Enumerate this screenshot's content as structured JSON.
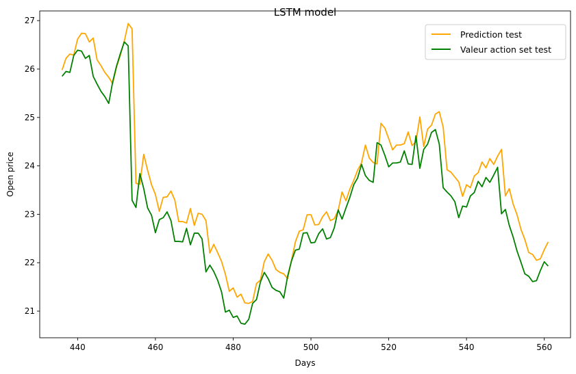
{
  "chart_data": {
    "type": "line",
    "title": "LSTM model",
    "xlabel": "Days",
    "ylabel": "Open price",
    "xlim": [
      430.25,
      566.75
    ],
    "ylim": [
      20.45,
      27.2
    ],
    "xticks": [
      440,
      460,
      480,
      500,
      520,
      540,
      560
    ],
    "yticks": [
      21,
      22,
      23,
      24,
      25,
      26,
      27
    ],
    "grid": false,
    "legend_position": "top-right",
    "x_start": 436,
    "series": [
      {
        "name": "Prediction test",
        "color": "#FFA500",
        "values": [
          25.98,
          26.22,
          26.31,
          26.29,
          26.62,
          26.74,
          26.73,
          26.56,
          26.64,
          26.19,
          26.07,
          25.93,
          25.83,
          25.7,
          26.04,
          26.29,
          26.58,
          26.94,
          26.83,
          23.64,
          23.62,
          24.24,
          23.91,
          23.61,
          23.41,
          23.06,
          23.35,
          23.36,
          23.48,
          23.29,
          22.85,
          22.85,
          22.82,
          23.12,
          22.77,
          23.02,
          23.0,
          22.87,
          22.2,
          22.38,
          22.21,
          22.03,
          21.76,
          21.41,
          21.48,
          21.29,
          21.35,
          21.17,
          21.16,
          21.2,
          21.57,
          21.64,
          22.02,
          22.18,
          22.05,
          21.86,
          21.8,
          21.77,
          21.67,
          22.05,
          22.43,
          22.65,
          22.68,
          22.99,
          22.99,
          22.78,
          22.79,
          22.95,
          23.05,
          22.87,
          22.91,
          23.08,
          23.46,
          23.28,
          23.52,
          23.7,
          23.91,
          24.06,
          24.43,
          24.16,
          24.07,
          24.04,
          24.88,
          24.78,
          24.56,
          24.33,
          24.43,
          24.43,
          24.46,
          24.7,
          24.42,
          24.5,
          25.01,
          24.4,
          24.76,
          24.84,
          25.07,
          25.12,
          24.8,
          23.92,
          23.87,
          23.77,
          23.67,
          23.37,
          23.61,
          23.55,
          23.79,
          23.86,
          24.08,
          23.96,
          24.15,
          24.03,
          24.2,
          24.34,
          23.38,
          23.53,
          23.21,
          22.99,
          22.69,
          22.48,
          22.21,
          22.17,
          22.05,
          22.08,
          22.27,
          22.43
        ]
      },
      {
        "name": "Valeur action set test",
        "color": "#008000",
        "values": [
          25.85,
          25.95,
          25.93,
          26.28,
          26.39,
          26.37,
          26.22,
          26.28,
          25.85,
          25.69,
          25.54,
          25.43,
          25.29,
          25.73,
          26.06,
          26.32,
          26.56,
          26.48,
          23.29,
          23.14,
          23.84,
          23.53,
          23.13,
          22.98,
          22.62,
          22.89,
          22.93,
          23.05,
          22.87,
          22.44,
          22.44,
          22.43,
          22.71,
          22.37,
          22.61,
          22.61,
          22.49,
          21.81,
          21.95,
          21.82,
          21.64,
          21.4,
          20.98,
          21.02,
          20.87,
          20.9,
          20.75,
          20.73,
          20.83,
          21.16,
          21.24,
          21.6,
          21.8,
          21.67,
          21.49,
          21.43,
          21.4,
          21.27,
          21.72,
          22.04,
          22.26,
          22.28,
          22.61,
          22.62,
          22.41,
          22.42,
          22.6,
          22.7,
          22.49,
          22.52,
          22.72,
          23.09,
          22.9,
          23.13,
          23.35,
          23.61,
          23.75,
          24.03,
          23.8,
          23.7,
          23.66,
          24.48,
          24.43,
          24.22,
          23.98,
          24.06,
          24.06,
          24.08,
          24.31,
          24.04,
          24.03,
          24.62,
          23.95,
          24.34,
          24.45,
          24.69,
          24.75,
          24.45,
          23.55,
          23.46,
          23.38,
          23.26,
          22.93,
          23.17,
          23.15,
          23.38,
          23.45,
          23.68,
          23.57,
          23.76,
          23.66,
          23.81,
          23.97,
          23.01,
          23.1,
          22.77,
          22.53,
          22.24,
          22.01,
          21.77,
          21.72,
          21.61,
          21.63,
          21.84,
          22.02,
          21.93
        ]
      }
    ]
  }
}
